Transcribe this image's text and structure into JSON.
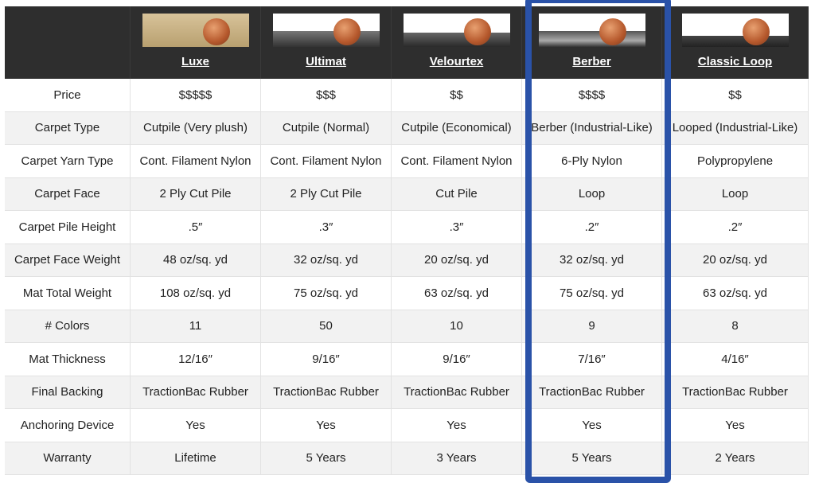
{
  "products": [
    {
      "name": "Luxe",
      "image": "luxe-carpet-sample-with-penny"
    },
    {
      "name": "Ultimat",
      "image": "ultimat-carpet-sample-with-penny"
    },
    {
      "name": "Velourtex",
      "image": "velourtex-carpet-sample-with-penny"
    },
    {
      "name": "Berber",
      "image": "berber-carpet-sample-with-penny"
    },
    {
      "name": "Classic Loop",
      "image": "classic-loop-carpet-sample-with-penny"
    }
  ],
  "highlighted_product": "Berber",
  "highlight_color": "#2a52a8",
  "rows": [
    {
      "label": "Price",
      "values": [
        "$$$$$",
        "$$$",
        "$$",
        "$$$$",
        "$$"
      ]
    },
    {
      "label": "Carpet Type",
      "values": [
        "Cutpile (Very plush)",
        "Cutpile (Normal)",
        "Cutpile (Economical)",
        "Berber (Industrial-Like)",
        "Looped (Industrial-Like)"
      ]
    },
    {
      "label": "Carpet Yarn Type",
      "values": [
        "Cont. Filament Nylon",
        "Cont. Filament Nylon",
        "Cont. Filament Nylon",
        "6-Ply Nylon",
        "Polypropylene"
      ]
    },
    {
      "label": "Carpet Face",
      "values": [
        "2 Ply Cut Pile",
        "2 Ply Cut Pile",
        "Cut Pile",
        "Loop",
        "Loop"
      ]
    },
    {
      "label": "Carpet Pile Height",
      "values": [
        ".5″",
        ".3″",
        ".3″",
        ".2″",
        ".2″"
      ]
    },
    {
      "label": "Carpet Face Weight",
      "values": [
        "48 oz/sq. yd",
        "32 oz/sq. yd",
        "20 oz/sq. yd",
        "32 oz/sq. yd",
        "20 oz/sq. yd"
      ]
    },
    {
      "label": "Mat Total Weight",
      "values": [
        "108 oz/sq. yd",
        "75 oz/sq. yd",
        "63 oz/sq. yd",
        "75 oz/sq. yd",
        "63 oz/sq. yd"
      ]
    },
    {
      "label": "# Colors",
      "values": [
        "11",
        "50",
        "10",
        "9",
        "8"
      ]
    },
    {
      "label": "Mat Thickness",
      "values": [
        "12/16″",
        "9/16″",
        "9/16″",
        "7/16″",
        "4/16″"
      ]
    },
    {
      "label": "Final Backing",
      "values": [
        "TractionBac Rubber",
        "TractionBac Rubber",
        "TractionBac Rubber",
        "TractionBac Rubber",
        "TractionBac Rubber"
      ]
    },
    {
      "label": "Anchoring Device",
      "values": [
        "Yes",
        "Yes",
        "Yes",
        "Yes",
        "Yes"
      ]
    },
    {
      "label": "Warranty",
      "values": [
        "Lifetime",
        "5 Years",
        "3 Years",
        "5 Years",
        "2 Years"
      ]
    }
  ]
}
